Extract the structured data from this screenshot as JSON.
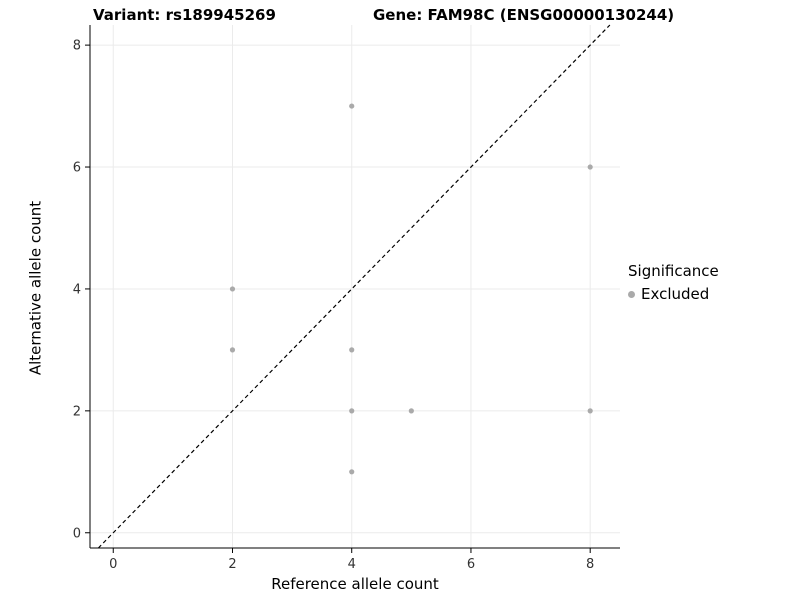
{
  "titles": {
    "left": "Variant: rs189945269",
    "right": "Gene: FAM98C (ENSG00000130244)"
  },
  "chart_data": {
    "type": "scatter",
    "xlabel": "Reference allele count",
    "ylabel": "Alternative allele count",
    "xticks": [
      0,
      2,
      4,
      6,
      8
    ],
    "yticks": [
      0,
      2,
      4,
      6,
      8
    ],
    "xlim": [
      -0.39,
      8.5
    ],
    "ylim": [
      -0.25,
      8.33
    ],
    "points": [
      {
        "x": 4,
        "y": 7
      },
      {
        "x": 8,
        "y": 6
      },
      {
        "x": 2,
        "y": 4
      },
      {
        "x": 2,
        "y": 3
      },
      {
        "x": 4,
        "y": 3
      },
      {
        "x": 4,
        "y": 2
      },
      {
        "x": 5,
        "y": 2
      },
      {
        "x": 8,
        "y": 2
      },
      {
        "x": 4,
        "y": 1
      }
    ],
    "identity_line": {
      "style": "dashed",
      "color": "#000000",
      "slope": 1,
      "intercept": 0
    },
    "grid": "on",
    "colors": {
      "point": "#aaaaaa",
      "gridline": "#ebebeb",
      "axis": "#000000",
      "tick_label": "#333333"
    },
    "legend": {
      "position": "right",
      "title": "Significance",
      "items": [
        {
          "label": "Excluded",
          "color": "#aaaaaa"
        }
      ]
    }
  }
}
